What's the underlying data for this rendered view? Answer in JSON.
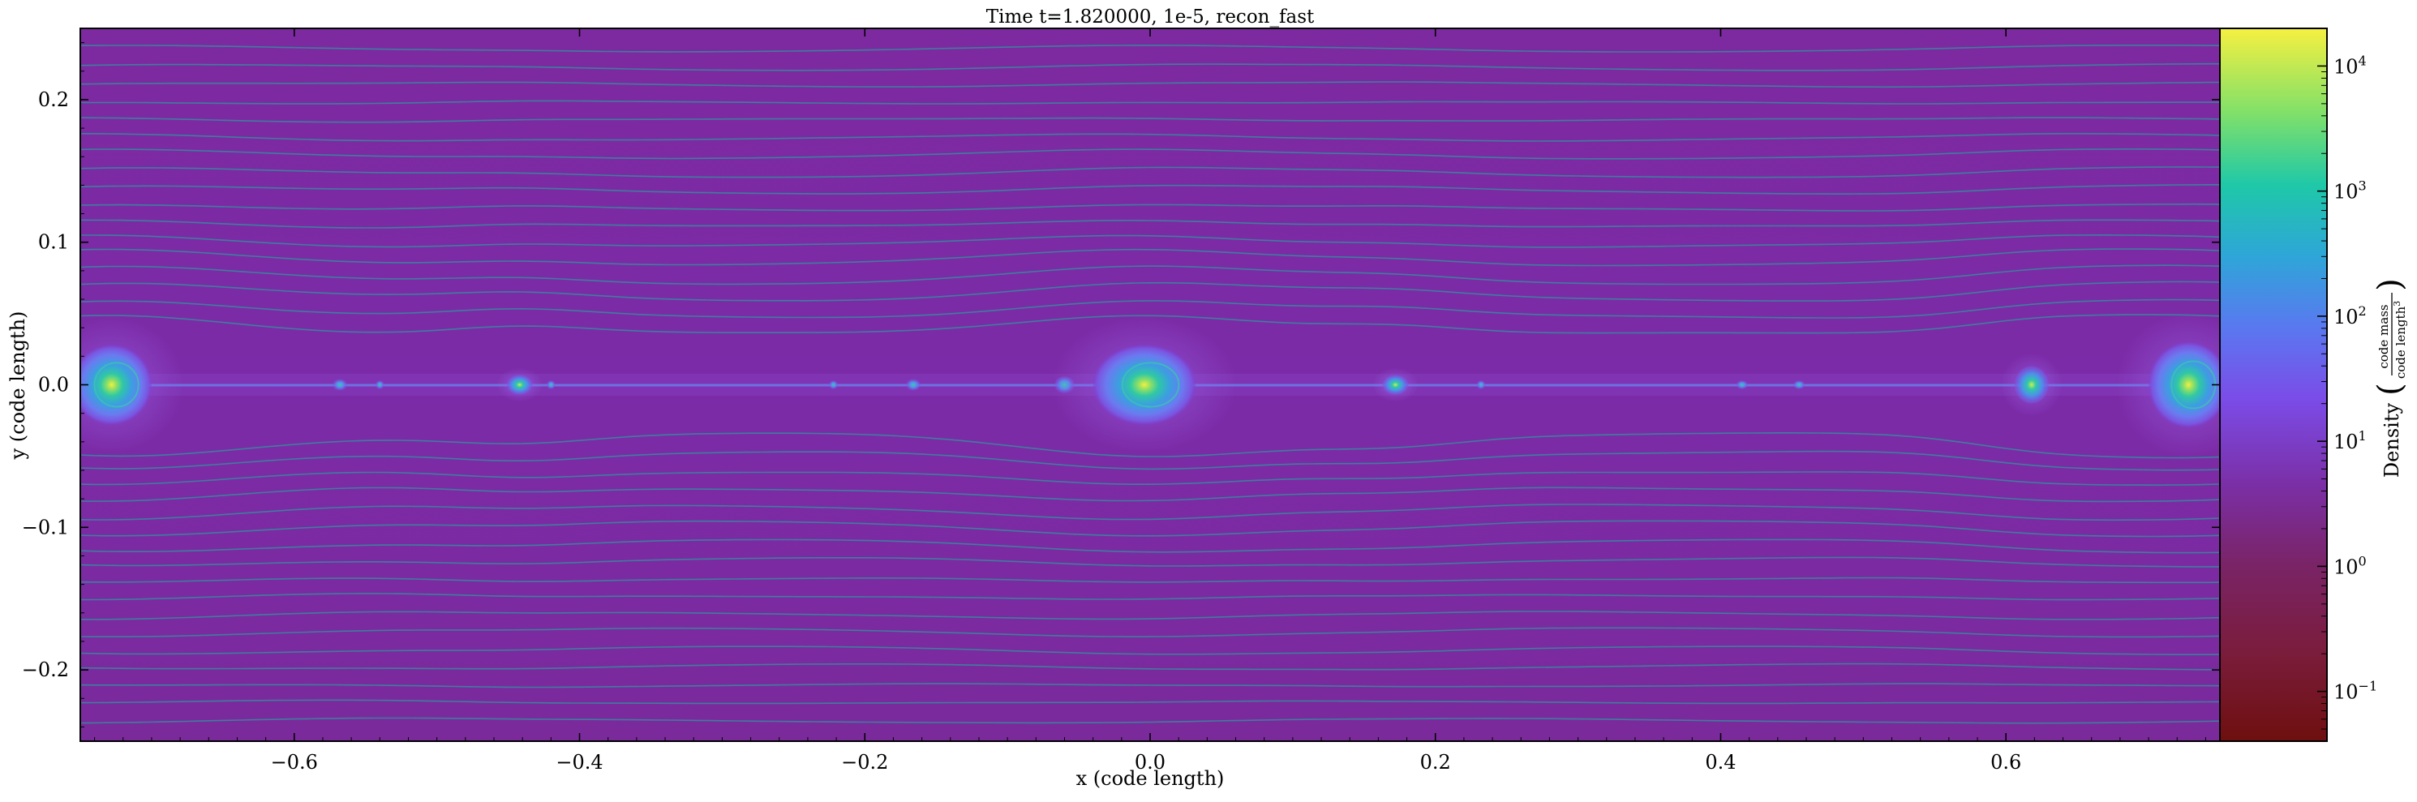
{
  "chart_data": {
    "type": "heatmap",
    "title": "Time t=1.820000, 1e-5, recon_fast",
    "xlabel": "x  (code length)",
    "ylabel": "y  (code length)",
    "xlim": [
      -0.75,
      0.75
    ],
    "ylim": [
      -0.25,
      0.25
    ],
    "xticks": [
      -0.6,
      -0.4,
      -0.2,
      0.0,
      0.2,
      0.4,
      0.6
    ],
    "xtick_labels": [
      "−0.6",
      "−0.4",
      "−0.2",
      "0.0",
      "0.2",
      "0.4",
      "0.6"
    ],
    "yticks": [
      0.2,
      0.1,
      0.0,
      -0.1,
      -0.2
    ],
    "ytick_labels": [
      "0.2",
      "0.1",
      "0.0",
      "−0.1",
      "−0.2"
    ],
    "colorbar": {
      "label": "Density",
      "unit_numerator": "code mass",
      "unit_denominator": "code length",
      "unit_denominator_power": "3",
      "scale": "log",
      "range": [
        0.04,
        20000
      ],
      "ticks": [
        0.1,
        1,
        10,
        100,
        1000,
        10000
      ],
      "tick_labels": [
        {
          "base": "10",
          "exp": "−1"
        },
        {
          "base": "10",
          "exp": "0"
        },
        {
          "base": "10",
          "exp": "1"
        },
        {
          "base": "10",
          "exp": "2"
        },
        {
          "base": "10",
          "exp": "3"
        },
        {
          "base": "10",
          "exp": "4"
        }
      ],
      "colormap": "plasma-like (dark red → purple → blue → teal → yellow)"
    },
    "background_density": 1.0,
    "current_sheet_y": 0.0,
    "plasmoids": [
      {
        "x": -0.728,
        "y": 0.0,
        "rx": 0.028,
        "ry": 0.028,
        "peak": 800,
        "kind": "large"
      },
      {
        "x": -0.568,
        "y": 0.0,
        "rx": 0.005,
        "ry": 0.004,
        "peak": 60,
        "kind": "small"
      },
      {
        "x": -0.54,
        "y": 0.0,
        "rx": 0.003,
        "ry": 0.003,
        "peak": 30,
        "kind": "small"
      },
      {
        "x": -0.442,
        "y": 0.0,
        "rx": 0.009,
        "ry": 0.007,
        "peak": 150,
        "kind": "medium"
      },
      {
        "x": -0.42,
        "y": 0.0,
        "rx": 0.003,
        "ry": 0.003,
        "peak": 30,
        "kind": "small"
      },
      {
        "x": -0.222,
        "y": 0.0,
        "rx": 0.003,
        "ry": 0.003,
        "peak": 30,
        "kind": "small"
      },
      {
        "x": -0.166,
        "y": 0.0,
        "rx": 0.005,
        "ry": 0.004,
        "peak": 40,
        "kind": "small"
      },
      {
        "x": -0.06,
        "y": 0.0,
        "rx": 0.007,
        "ry": 0.006,
        "peak": 40,
        "kind": "small"
      },
      {
        "x": -0.004,
        "y": 0.0,
        "rx": 0.036,
        "ry": 0.028,
        "peak": 3000,
        "kind": "large"
      },
      {
        "x": 0.172,
        "y": 0.0,
        "rx": 0.009,
        "ry": 0.007,
        "peak": 150,
        "kind": "medium"
      },
      {
        "x": 0.232,
        "y": 0.0,
        "rx": 0.003,
        "ry": 0.003,
        "peak": 30,
        "kind": "small"
      },
      {
        "x": 0.415,
        "y": 0.0,
        "rx": 0.004,
        "ry": 0.003,
        "peak": 40,
        "kind": "small"
      },
      {
        "x": 0.455,
        "y": 0.0,
        "rx": 0.004,
        "ry": 0.003,
        "peak": 40,
        "kind": "small"
      },
      {
        "x": 0.618,
        "y": 0.0,
        "rx": 0.012,
        "ry": 0.013,
        "peak": 400,
        "kind": "medium"
      },
      {
        "x": 0.728,
        "y": 0.0,
        "rx": 0.028,
        "ry": 0.03,
        "peak": 1500,
        "kind": "large"
      }
    ],
    "streamlines": {
      "color": "#2a9a9e",
      "y_levels": [
        -0.235,
        -0.222,
        -0.21,
        -0.197,
        -0.185,
        -0.172,
        -0.16,
        -0.147,
        -0.135,
        -0.122,
        -0.11,
        -0.097,
        -0.085,
        -0.072,
        -0.06,
        -0.047,
        -0.035,
        0.035,
        0.047,
        0.06,
        0.072,
        0.085,
        0.097,
        0.11,
        0.122,
        0.135,
        0.147,
        0.16,
        0.172,
        0.185,
        0.197,
        0.21,
        0.222,
        0.235
      ]
    }
  }
}
